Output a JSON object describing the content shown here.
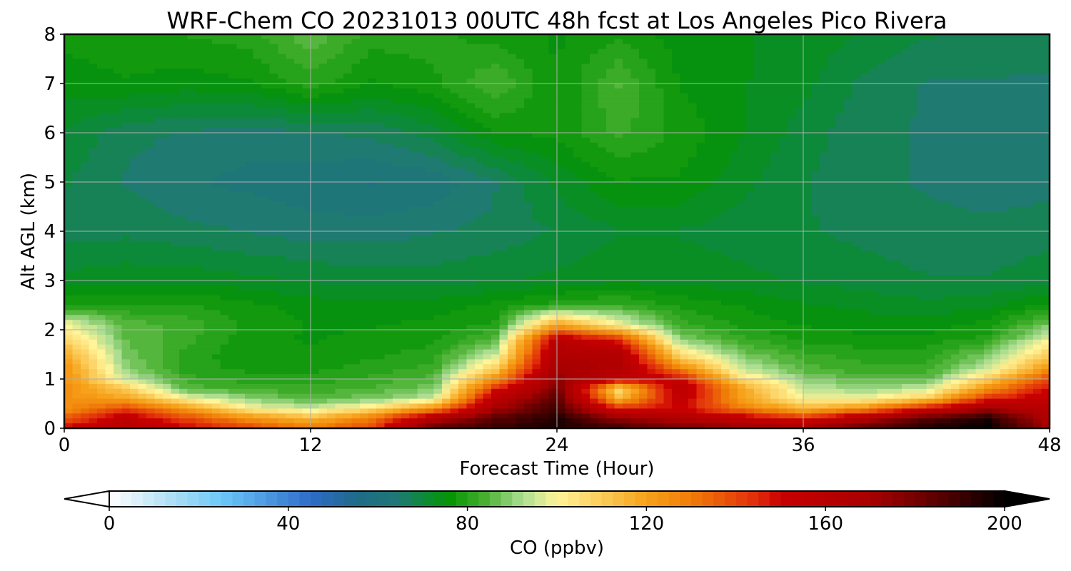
{
  "chart_data": {
    "type": "heatmap",
    "title": "WRF-Chem CO  20231013 00UTC 48h fcst at Los Angeles Pico Rivera",
    "xlabel": "Forecast Time (Hour)",
    "ylabel": "Alt AGL (km)",
    "xlim": [
      0,
      48
    ],
    "ylim": [
      0,
      8
    ],
    "xticks": [
      0,
      12,
      24,
      36,
      48
    ],
    "yticks": [
      0,
      1,
      2,
      3,
      4,
      5,
      6,
      7,
      8
    ],
    "grid": true,
    "x": [
      0,
      3,
      6,
      9,
      12,
      15,
      18,
      21,
      24,
      27,
      30,
      33,
      36,
      39,
      42,
      45,
      48
    ],
    "y": [
      0,
      0.2,
      0.4,
      0.6,
      0.8,
      1.0,
      1.2,
      1.5,
      1.8,
      2.1,
      2.5,
      3,
      4,
      5,
      6,
      7,
      8
    ],
    "z": [
      [
        150,
        160,
        150,
        140,
        130,
        140,
        185,
        190,
        195,
        190,
        180,
        175,
        170,
        185,
        195,
        200,
        170
      ],
      [
        135,
        155,
        140,
        125,
        115,
        130,
        165,
        185,
        195,
        175,
        165,
        155,
        145,
        165,
        185,
        195,
        165
      ],
      [
        125,
        140,
        120,
        100,
        95,
        105,
        125,
        170,
        190,
        145,
        150,
        130,
        115,
        125,
        150,
        170,
        160
      ],
      [
        125,
        120,
        100,
        90,
        85,
        88,
        95,
        160,
        185,
        115,
        155,
        120,
        100,
        100,
        110,
        145,
        155
      ],
      [
        125,
        110,
        85,
        83,
        82,
        84,
        88,
        145,
        180,
        105,
        160,
        120,
        95,
        90,
        95,
        125,
        150
      ],
      [
        125,
        95,
        82,
        80,
        80,
        82,
        85,
        125,
        175,
        155,
        150,
        105,
        90,
        85,
        85,
        110,
        140
      ],
      [
        125,
        90,
        80,
        78,
        78,
        80,
        82,
        110,
        170,
        165,
        130,
        95,
        85,
        82,
        82,
        95,
        125
      ],
      [
        118,
        88,
        80,
        77,
        77,
        78,
        80,
        95,
        165,
        165,
        105,
        88,
        82,
        80,
        80,
        88,
        110
      ],
      [
        108,
        86,
        82,
        77,
        76,
        77,
        78,
        85,
        160,
        145,
        90,
        82,
        78,
        77,
        77,
        80,
        98
      ],
      [
        100,
        85,
        83,
        78,
        76,
        76,
        77,
        79,
        120,
        100,
        82,
        78,
        76,
        75,
        75,
        77,
        88
      ],
      [
        78,
        79,
        79,
        77,
        75,
        75,
        75,
        77,
        80,
        82,
        78,
        76,
        74,
        73,
        72,
        73,
        77
      ],
      [
        72,
        73,
        73,
        72,
        71,
        70,
        70,
        71,
        72,
        73,
        73,
        72,
        71,
        70,
        69,
        69,
        70
      ],
      [
        68,
        68,
        67,
        66,
        65,
        65,
        66,
        67,
        69,
        71,
        71,
        70,
        69,
        68,
        67,
        67,
        68
      ],
      [
        69,
        66,
        64,
        63,
        62,
        61,
        62,
        66,
        72,
        76,
        76,
        72,
        69,
        67,
        66,
        65,
        65
      ],
      [
        71,
        67,
        66,
        65,
        66,
        67,
        70,
        76,
        77,
        82,
        78,
        74,
        70,
        67,
        66,
        64,
        64
      ],
      [
        75,
        76,
        75,
        76,
        80,
        76,
        78,
        84,
        76,
        84,
        76,
        74,
        72,
        68,
        66,
        66,
        66
      ],
      [
        77,
        78,
        79,
        80,
        86,
        80,
        80,
        77,
        76,
        78,
        75,
        74,
        73,
        71,
        69,
        68,
        67
      ]
    ],
    "colorbar": {
      "label": "CO  (ppbv)",
      "min": 0,
      "max": 200,
      "ticks": [
        0,
        40,
        80,
        120,
        160,
        200
      ],
      "extend": "both",
      "stops": [
        {
          "v": 0,
          "c": "#ffffff"
        },
        {
          "v": 15,
          "c": "#a8dcf4"
        },
        {
          "v": 25,
          "c": "#6cc8f8"
        },
        {
          "v": 45,
          "c": "#2e6cc8"
        },
        {
          "v": 55,
          "c": "#1f6a8a"
        },
        {
          "v": 65,
          "c": "#1f7a72"
        },
        {
          "v": 70,
          "c": "#0c8a3a"
        },
        {
          "v": 76,
          "c": "#059405"
        },
        {
          "v": 84,
          "c": "#48b030"
        },
        {
          "v": 92,
          "c": "#a8dc90"
        },
        {
          "v": 100,
          "c": "#fff498"
        },
        {
          "v": 110,
          "c": "#fbcc5a"
        },
        {
          "v": 120,
          "c": "#f6a21a"
        },
        {
          "v": 130,
          "c": "#f07c08"
        },
        {
          "v": 145,
          "c": "#e02a0a"
        },
        {
          "v": 150,
          "c": "#c80000"
        },
        {
          "v": 170,
          "c": "#a80000"
        },
        {
          "v": 185,
          "c": "#5a0000"
        },
        {
          "v": 200,
          "c": "#000000"
        }
      ]
    }
  }
}
